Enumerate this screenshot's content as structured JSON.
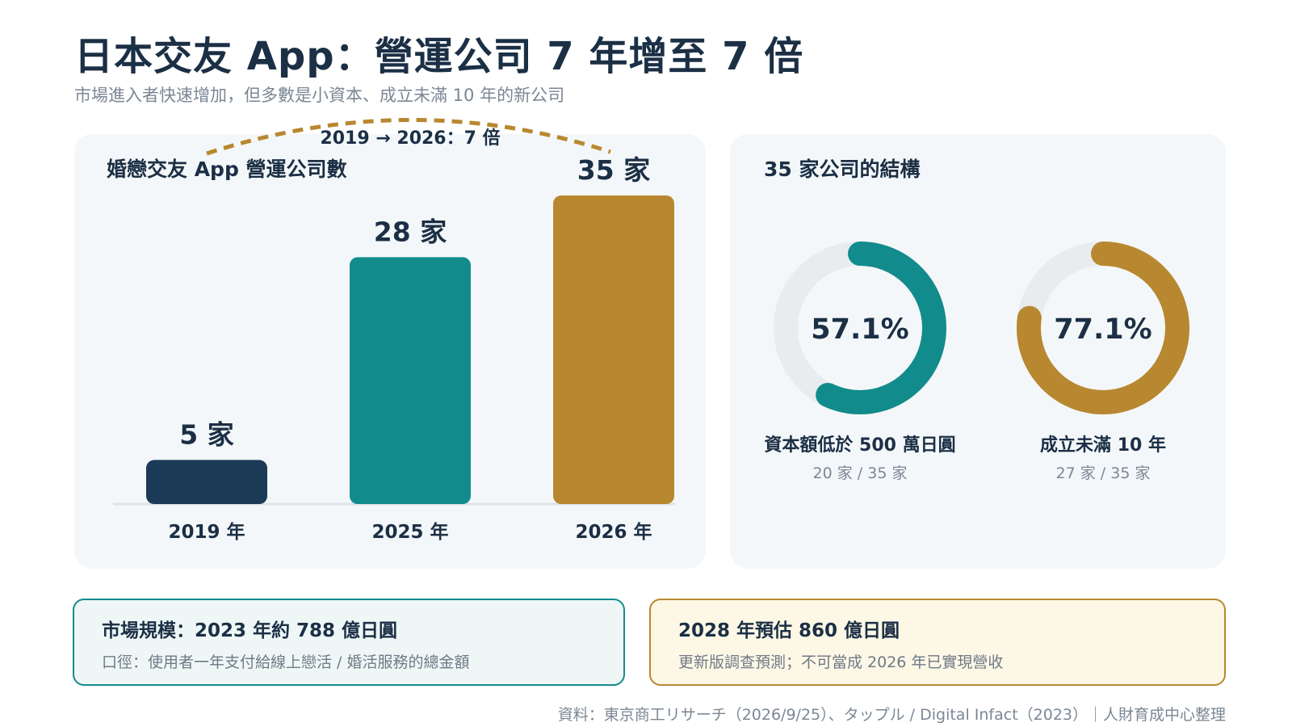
{
  "title": "日本交友 App：營運公司 7 年增至 7 倍",
  "subtitle": "市場進入者快速增加，但多數是小資本、成立未滿 10 年的新公司",
  "colors": {
    "navy": "#1b3a57",
    "teal": "#128b8c",
    "gold": "#b88830",
    "track": "#e8ecef"
  },
  "chart_data": [
    {
      "type": "bar",
      "title": "婚戀交友 App 營運公司數",
      "categories": [
        "2019 年",
        "2025 年",
        "2026 年"
      ],
      "values": [
        5,
        28,
        35
      ],
      "value_labels": [
        "5 家",
        "28 家",
        "35 家"
      ],
      "bar_colors": [
        "#1b3a57",
        "#128b8c",
        "#b88830"
      ],
      "annotation": "2019 → 2026：7 倍",
      "ylim": [
        0,
        35
      ],
      "grid": false
    },
    {
      "type": "pie",
      "style": "donut",
      "title": "35 家公司的結構",
      "items": [
        {
          "label": "資本額低於 500 萬日圓",
          "percent": 57.1,
          "percent_label": "57.1%",
          "sub": "20 家 / 35 家",
          "color": "#128b8c"
        },
        {
          "label": "成立未滿 10 年",
          "percent": 77.1,
          "percent_label": "77.1%",
          "sub": "27 家 / 35 家",
          "color": "#b88830"
        }
      ]
    }
  ],
  "notes": {
    "market_head": "市場規模：2023 年約 788 億日圓",
    "market_body": "口徑：使用者一年支付給線上戀活 / 婚活服務的總金額",
    "forecast_head": "2028 年預估 860 億日圓",
    "forecast_body": "更新版調查預測；不可當成 2026 年已實現營收"
  },
  "source": "資料：東京商工リサーチ（2026/9/25）、タップル / Digital Infact（2023）｜人財育成中心整理"
}
